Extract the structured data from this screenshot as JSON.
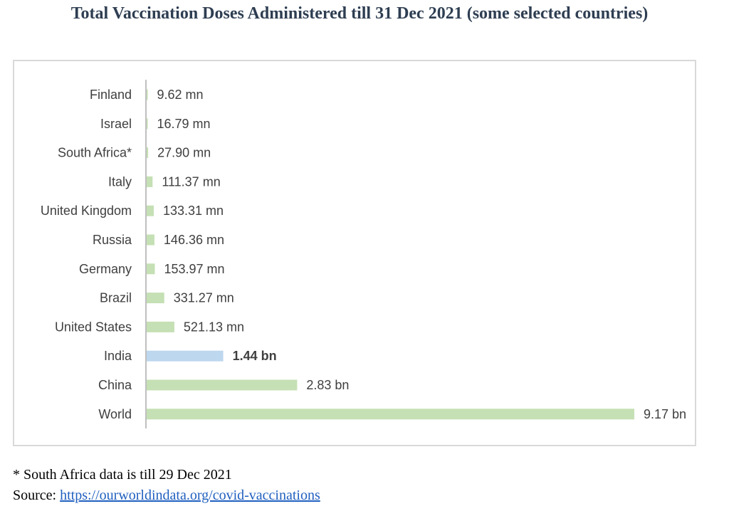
{
  "title": "Total Vaccination Doses Administered till 31 Dec 2021 (some selected countries)",
  "footnote": "* South Africa data is till 29 Dec 2021",
  "source": {
    "prefix": "Source: ",
    "link_text": "https://ourworldindata.org/covid-vaccinations"
  },
  "colors": {
    "bar": "#c5e0b4",
    "highlight": "#bdd7ee",
    "axis": "#bfbfbf"
  },
  "chart_data": {
    "type": "bar",
    "orientation": "horizontal",
    "title": "Total Vaccination Doses Administered till 31 Dec 2021 (some selected countries)",
    "xlabel": "",
    "ylabel": "",
    "unit": "million doses",
    "highlight": "India",
    "categories": [
      "Finland",
      "Israel",
      "South Africa*",
      "Italy",
      "United Kingdom",
      "Russia",
      "Germany",
      "Brazil",
      "United States",
      "India",
      "China",
      "World"
    ],
    "values": [
      9.62,
      16.79,
      27.9,
      111.37,
      133.31,
      146.36,
      153.97,
      331.27,
      521.13,
      1440,
      2830,
      9170
    ],
    "labels": [
      "9.62 mn",
      "16.79 mn",
      "27.90 mn",
      "111.37 mn",
      "133.31 mn",
      "146.36 mn",
      "153.97 mn",
      "331.27 mn",
      "521.13 mn",
      "1.44 bn",
      "2.83 bn",
      "9.17 bn"
    ],
    "xlim": [
      0,
      9170
    ],
    "grid": false,
    "legend": "none"
  }
}
